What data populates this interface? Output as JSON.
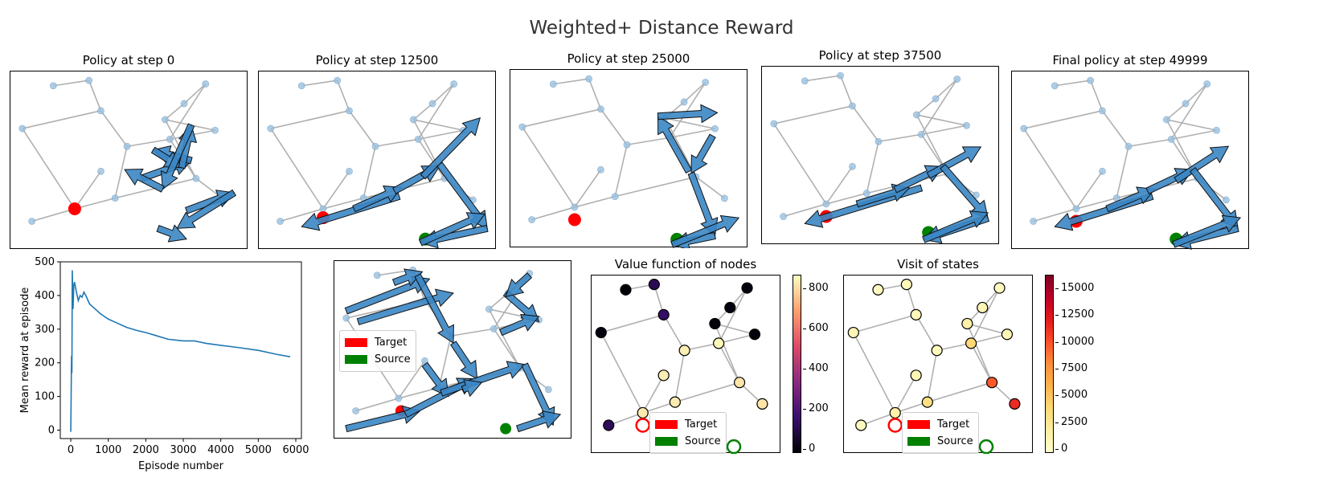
{
  "suptitle": "Weighted+ Distance Reward",
  "graph": {
    "nodes": [
      [
        0.18,
        0.08
      ],
      [
        0.33,
        0.05
      ],
      [
        0.38,
        0.22
      ],
      [
        0.05,
        0.32
      ],
      [
        0.65,
        0.27
      ],
      [
        0.73,
        0.18
      ],
      [
        0.82,
        0.07
      ],
      [
        0.86,
        0.33
      ],
      [
        0.49,
        0.42
      ],
      [
        0.67,
        0.38
      ],
      [
        0.38,
        0.56
      ],
      [
        0.44,
        0.71
      ],
      [
        0.27,
        0.77
      ],
      [
        0.09,
        0.84
      ],
      [
        0.78,
        0.6
      ],
      [
        0.9,
        0.72
      ]
    ],
    "edges": [
      [
        0,
        1
      ],
      [
        1,
        2
      ],
      [
        2,
        3
      ],
      [
        3,
        12
      ],
      [
        12,
        13
      ],
      [
        2,
        8
      ],
      [
        8,
        9
      ],
      [
        9,
        7
      ],
      [
        7,
        4
      ],
      [
        4,
        5
      ],
      [
        5,
        6
      ],
      [
        6,
        9
      ],
      [
        8,
        11
      ],
      [
        11,
        12
      ],
      [
        4,
        14
      ],
      [
        9,
        14
      ],
      [
        14,
        15
      ],
      [
        11,
        14
      ],
      [
        10,
        12
      ]
    ]
  },
  "panels": [
    {
      "title": "Policy at step 0",
      "target": [
        0.27,
        0.77
      ],
      "source": null,
      "arrows": [
        [
          0.55,
          0.6,
          0.76,
          0.5
        ],
        [
          0.76,
          0.5,
          0.6,
          0.44
        ],
        [
          0.6,
          0.44,
          0.72,
          0.54
        ],
        [
          0.72,
          0.54,
          0.76,
          0.3
        ],
        [
          0.76,
          0.3,
          0.64,
          0.66
        ],
        [
          0.64,
          0.66,
          0.48,
          0.55
        ],
        [
          0.74,
          0.78,
          0.94,
          0.68
        ],
        [
          0.94,
          0.68,
          0.7,
          0.88
        ],
        [
          0.62,
          0.88,
          0.74,
          0.94
        ]
      ]
    },
    {
      "title": "Policy at step 12500",
      "target": [
        0.27,
        0.82
      ],
      "source": [
        0.7,
        0.94
      ],
      "arrows": [
        [
          0.59,
          0.7,
          0.18,
          0.87
        ],
        [
          0.4,
          0.77,
          0.6,
          0.65
        ],
        [
          0.57,
          0.67,
          0.76,
          0.53
        ],
        [
          0.69,
          0.59,
          0.93,
          0.26
        ],
        [
          0.76,
          0.52,
          0.96,
          0.88
        ],
        [
          0.96,
          0.88,
          0.68,
          0.96
        ],
        [
          0.68,
          0.96,
          0.95,
          0.8
        ]
      ]
    },
    {
      "title": "Policy at step 25000",
      "target": [
        0.27,
        0.84
      ],
      "source": [
        0.7,
        0.95
      ],
      "arrows": [
        [
          0.75,
          0.57,
          0.62,
          0.26
        ],
        [
          0.62,
          0.26,
          0.87,
          0.24
        ],
        [
          0.85,
          0.37,
          0.76,
          0.58
        ],
        [
          0.76,
          0.58,
          0.86,
          0.93
        ],
        [
          0.86,
          0.93,
          0.68,
          0.98
        ],
        [
          0.68,
          0.98,
          0.96,
          0.83
        ]
      ]
    },
    {
      "title": "Policy at step 37500",
      "target": [
        0.27,
        0.84
      ],
      "source": [
        0.7,
        0.93
      ],
      "arrows": [
        [
          0.67,
          0.68,
          0.18,
          0.88
        ],
        [
          0.4,
          0.77,
          0.62,
          0.68
        ],
        [
          0.56,
          0.69,
          0.76,
          0.56
        ],
        [
          0.7,
          0.61,
          0.92,
          0.45
        ],
        [
          0.76,
          0.56,
          0.95,
          0.85
        ],
        [
          0.95,
          0.85,
          0.68,
          0.97
        ],
        [
          0.68,
          0.97,
          0.95,
          0.82
        ]
      ]
    },
    {
      "title": "Final policy at step 49999",
      "target": [
        0.27,
        0.84
      ],
      "source": [
        0.69,
        0.94
      ],
      "arrows": [
        [
          0.59,
          0.7,
          0.18,
          0.87
        ],
        [
          0.4,
          0.77,
          0.6,
          0.66
        ],
        [
          0.57,
          0.67,
          0.76,
          0.55
        ],
        [
          0.69,
          0.61,
          0.91,
          0.42
        ],
        [
          0.76,
          0.55,
          0.95,
          0.88
        ],
        [
          0.95,
          0.88,
          0.68,
          0.97
        ],
        [
          0.68,
          0.97,
          0.96,
          0.82
        ]
      ]
    }
  ],
  "aggregate": {
    "target": [
      0.28,
      0.84
    ],
    "source": [
      0.72,
      0.94
    ],
    "legend": {
      "target": "Target",
      "source": "Source"
    },
    "arrows": [
      [
        0.05,
        0.28,
        0.4,
        0.1
      ],
      [
        0.25,
        0.12,
        0.37,
        0.06
      ],
      [
        0.1,
        0.34,
        0.5,
        0.18
      ],
      [
        0.35,
        0.08,
        0.5,
        0.46
      ],
      [
        0.5,
        0.46,
        0.6,
        0.66
      ],
      [
        0.72,
        0.18,
        0.86,
        0.34
      ],
      [
        0.82,
        0.08,
        0.72,
        0.2
      ],
      [
        0.7,
        0.4,
        0.86,
        0.31
      ],
      [
        0.38,
        0.58,
        0.48,
        0.76
      ],
      [
        0.05,
        0.94,
        0.36,
        0.84
      ],
      [
        0.3,
        0.86,
        0.59,
        0.66
      ],
      [
        0.45,
        0.74,
        0.8,
        0.58
      ],
      [
        0.8,
        0.58,
        0.92,
        0.92
      ],
      [
        0.77,
        0.94,
        0.95,
        0.86
      ],
      [
        0.54,
        0.72,
        0.62,
        0.68
      ]
    ]
  },
  "value_nodes": [
    [
      [
        0.18,
        0.08
      ],
      0.0
    ],
    [
      [
        0.33,
        0.05
      ],
      0.15
    ],
    [
      [
        0.38,
        0.22
      ],
      0.18
    ],
    [
      [
        0.05,
        0.32
      ],
      0.02
    ],
    [
      [
        0.65,
        0.27
      ],
      0.01
    ],
    [
      [
        0.73,
        0.18
      ],
      0.02
    ],
    [
      [
        0.82,
        0.07
      ],
      0.01
    ],
    [
      [
        0.86,
        0.33
      ],
      0.01
    ],
    [
      [
        0.49,
        0.42
      ],
      0.97
    ],
    [
      [
        0.67,
        0.38
      ],
      0.99
    ],
    [
      [
        0.38,
        0.56
      ],
      0.97
    ],
    [
      [
        0.44,
        0.71
      ],
      0.96
    ],
    [
      [
        0.27,
        0.77
      ],
      0.96
    ],
    [
      [
        0.09,
        0.84
      ],
      0.16
    ],
    [
      [
        0.78,
        0.6
      ],
      0.95
    ],
    [
      [
        0.9,
        0.72
      ],
      0.95
    ]
  ],
  "visit_nodes": [
    [
      [
        0.18,
        0.08
      ],
      0.04
    ],
    [
      [
        0.33,
        0.05
      ],
      0.06
    ],
    [
      [
        0.38,
        0.22
      ],
      0.06
    ],
    [
      [
        0.05,
        0.32
      ],
      0.08
    ],
    [
      [
        0.65,
        0.27
      ],
      0.12
    ],
    [
      [
        0.73,
        0.18
      ],
      0.08
    ],
    [
      [
        0.82,
        0.07
      ],
      0.05
    ],
    [
      [
        0.86,
        0.33
      ],
      0.07
    ],
    [
      [
        0.49,
        0.42
      ],
      0.04
    ],
    [
      [
        0.67,
        0.38
      ],
      0.3
    ],
    [
      [
        0.38,
        0.56
      ],
      0.08
    ],
    [
      [
        0.44,
        0.71
      ],
      0.25
    ],
    [
      [
        0.27,
        0.77
      ],
      0.12
    ],
    [
      [
        0.09,
        0.84
      ],
      0.05
    ],
    [
      [
        0.78,
        0.6
      ],
      0.7
    ],
    [
      [
        0.9,
        0.72
      ],
      0.8
    ]
  ],
  "value_title": "Value function of nodes",
  "visit_title": "Visit of states",
  "value_cbar_ticks": [
    "800",
    "600",
    "400",
    "200",
    "0"
  ],
  "visit_cbar_ticks": [
    "15000",
    "12500",
    "10000",
    "7500",
    "5000",
    "2500",
    "0"
  ],
  "legend": {
    "target": "Target",
    "source": "Source"
  },
  "chart_data": {
    "type": "line",
    "title": "",
    "xlabel": "Episode number",
    "ylabel": "Mean reward at episode",
    "xlim": [
      -280,
      6150
    ],
    "ylim": [
      -25,
      500
    ],
    "xticks": [
      "0",
      "1000",
      "2000",
      "3000",
      "4000",
      "5000",
      "6000"
    ],
    "yticks": [
      "0",
      "100",
      "200",
      "300",
      "400",
      "500"
    ],
    "x": [
      0,
      20,
      30,
      40,
      60,
      80,
      100,
      150,
      200,
      250,
      300,
      350,
      400,
      500,
      600,
      800,
      1000,
      1200,
      1500,
      1800,
      2000,
      2300,
      2600,
      3000,
      3300,
      3600,
      4000,
      4500,
      5000,
      5500,
      5850
    ],
    "y": [
      -5,
      220,
      170,
      475,
      360,
      430,
      440,
      410,
      385,
      400,
      395,
      410,
      400,
      375,
      365,
      345,
      330,
      320,
      305,
      295,
      290,
      280,
      270,
      265,
      265,
      258,
      252,
      245,
      237,
      225,
      218
    ],
    "colors": {
      "line": "#1f77b4"
    }
  },
  "colors": {
    "target": "#ff0000",
    "source": "#008000",
    "arrow": "#3b86c4",
    "edge": "#b0b0b0",
    "node": "#9cc2e0"
  }
}
